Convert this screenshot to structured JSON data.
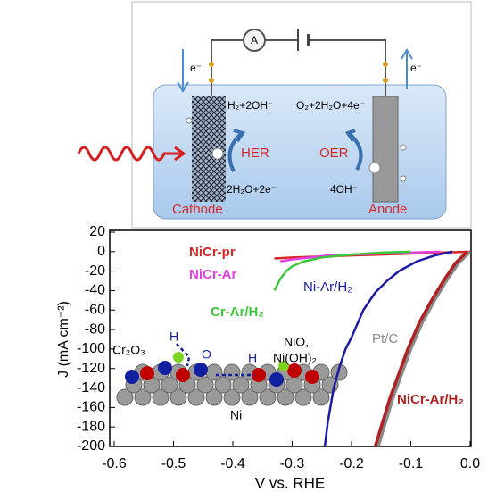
{
  "diagram": {
    "ammeter": "A",
    "electron_left": "e⁻",
    "electron_right": "e⁻",
    "cathode_top": "H₂+2OH⁻",
    "anode_top": "O₂+2H₂O+4e⁻",
    "her": "HER",
    "oer": "OER",
    "cathode_bottom": "2H₂O+2e⁻",
    "anode_bottom": "4OH⁻",
    "cathode": "Cathode",
    "anode": "Anode"
  },
  "chart_data": {
    "type": "line",
    "xlabel": "V vs. RHE",
    "ylabel": "J (mA cm⁻²)",
    "xlim": [
      -0.6,
      0.0
    ],
    "ylim": [
      -200,
      20
    ],
    "xticks": [
      -0.6,
      -0.5,
      -0.4,
      -0.3,
      -0.2,
      -0.1,
      {
        "value": 0,
        "label": "0.0"
      }
    ],
    "yticks": [
      20,
      0,
      -20,
      -40,
      -60,
      -80,
      -100,
      -120,
      -140,
      -160,
      -180,
      -200
    ],
    "series": [
      {
        "name": "NiCr-pr",
        "color": "#d62728",
        "x": [
          -0.33,
          -0.3,
          -0.25,
          -0.2,
          -0.15,
          -0.1,
          -0.05,
          0.0
        ],
        "values": [
          -7,
          -6,
          -5,
          -4,
          -3,
          -2,
          -1,
          0
        ]
      },
      {
        "name": "NiCr-Ar",
        "color": "#e040e0",
        "x": [
          -0.32,
          -0.3,
          -0.27,
          -0.24,
          -0.2,
          -0.15,
          -0.1,
          -0.05
        ],
        "values": [
          -10,
          -8,
          -6,
          -4,
          -3,
          -2,
          -1,
          0
        ]
      },
      {
        "name": "Cr-Ar/H₂",
        "color": "#3cc83c",
        "x": [
          -0.33,
          -0.32,
          -0.31,
          -0.3,
          -0.28,
          -0.25,
          -0.2,
          -0.15,
          -0.1
        ],
        "values": [
          -40,
          -28,
          -20,
          -15,
          -10,
          -6,
          -3,
          -1,
          0
        ]
      },
      {
        "name": "Ni-Ar/H₂",
        "color": "#1a1aa8",
        "x": [
          -0.245,
          -0.24,
          -0.23,
          -0.22,
          -0.21,
          -0.2,
          -0.18,
          -0.16,
          -0.14,
          -0.12,
          -0.09,
          -0.06,
          -0.03
        ],
        "values": [
          -200,
          -175,
          -140,
          -118,
          -100,
          -88,
          -60,
          -42,
          -30,
          -20,
          -10,
          -4,
          0
        ]
      },
      {
        "name": "Pt/C",
        "color": "#8a8a8a",
        "x": [
          -0.155,
          -0.14,
          -0.13,
          -0.115,
          -0.1,
          -0.08,
          -0.06,
          -0.04,
          -0.02,
          0.0
        ],
        "values": [
          -200,
          -170,
          -150,
          -125,
          -100,
          -72,
          -50,
          -30,
          -12,
          0
        ]
      },
      {
        "name": "NiCr-Ar/H₂",
        "color": "#b02020",
        "x": [
          -0.16,
          -0.145,
          -0.135,
          -0.12,
          -0.105,
          -0.085,
          -0.065,
          -0.045,
          -0.025,
          -0.005
        ],
        "values": [
          -200,
          -170,
          -150,
          -125,
          -100,
          -72,
          -50,
          -30,
          -12,
          0
        ]
      }
    ],
    "annotations": [
      "Cr₂O₃",
      "H",
      "O",
      "H",
      "NiO,",
      "Ni(OH)₂",
      "Ni"
    ]
  }
}
